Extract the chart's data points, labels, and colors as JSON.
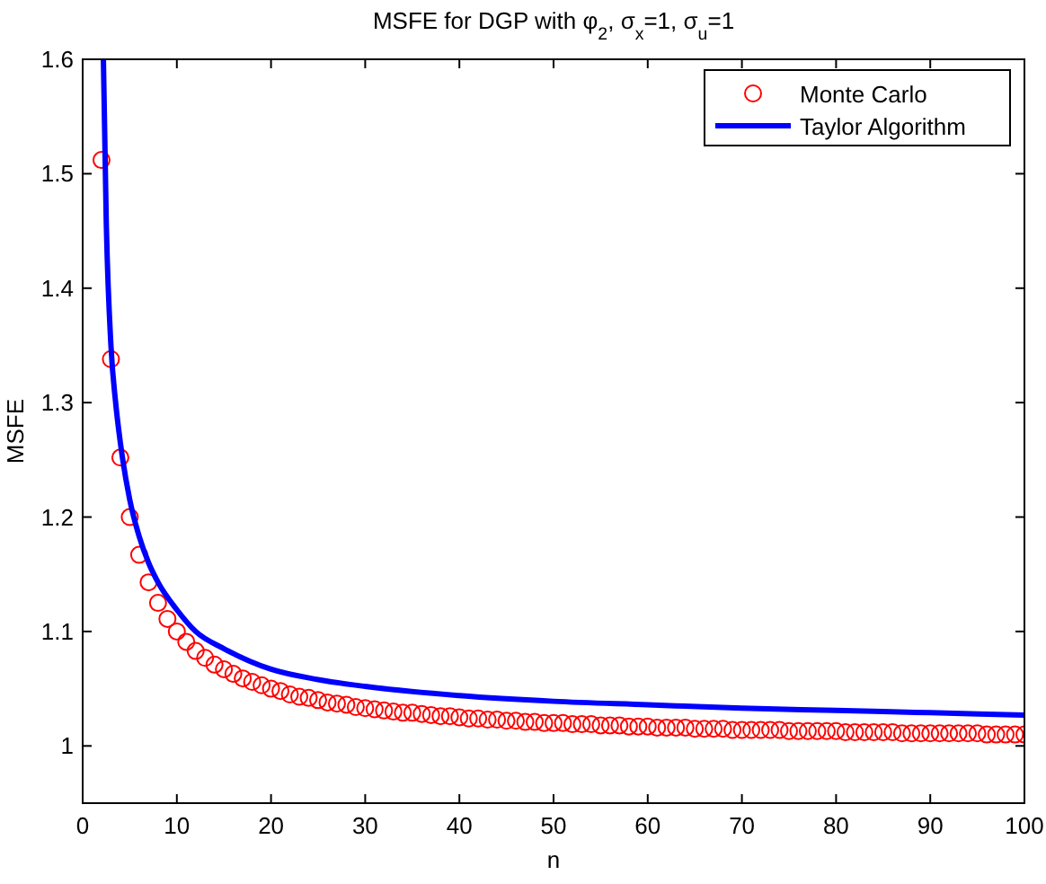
{
  "chart_data": {
    "type": "scatter",
    "title": "MSFE for DGP with φ$_{2}$, σ$_{x}$=1, σ$_{u}$=1",
    "xlabel": "n",
    "ylabel": "MSFE",
    "xlim": [
      0,
      100
    ],
    "xticks": [
      0,
      10,
      20,
      30,
      40,
      50,
      60,
      70,
      80,
      90,
      100
    ],
    "ylim": [
      0.95,
      1.6
    ],
    "yticks": [
      1,
      1.1,
      1.2,
      1.3,
      1.4,
      1.5,
      1.6
    ],
    "grid": false,
    "legend": "top right",
    "series": [
      {
        "name": "Monte Carlo",
        "marker": "circle",
        "color": "#ff0000",
        "x": [
          2,
          3,
          4,
          5,
          6,
          7,
          8,
          9,
          10,
          11,
          12,
          13,
          14,
          15,
          16,
          17,
          18,
          19,
          20,
          21,
          22,
          23,
          24,
          25,
          26,
          27,
          28,
          29,
          30,
          31,
          32,
          33,
          34,
          35,
          36,
          37,
          38,
          39,
          40,
          41,
          42,
          43,
          44,
          45,
          46,
          47,
          48,
          49,
          50,
          51,
          52,
          53,
          54,
          55,
          56,
          57,
          58,
          59,
          60,
          61,
          62,
          63,
          64,
          65,
          66,
          67,
          68,
          69,
          70,
          71,
          72,
          73,
          74,
          75,
          76,
          77,
          78,
          79,
          80,
          81,
          82,
          83,
          84,
          85,
          86,
          87,
          88,
          89,
          90,
          91,
          92,
          93,
          94,
          95,
          96,
          97,
          98,
          99,
          100
        ],
        "values": [
          1.512,
          1.338,
          1.252,
          1.2,
          1.167,
          1.143,
          1.125,
          1.111,
          1.1,
          1.091,
          1.083,
          1.077,
          1.071,
          1.067,
          1.063,
          1.059,
          1.056,
          1.053,
          1.05,
          1.048,
          1.045,
          1.043,
          1.042,
          1.04,
          1.038,
          1.037,
          1.036,
          1.034,
          1.033,
          1.032,
          1.031,
          1.03,
          1.029,
          1.029,
          1.028,
          1.027,
          1.026,
          1.026,
          1.025,
          1.024,
          1.024,
          1.023,
          1.023,
          1.022,
          1.022,
          1.021,
          1.021,
          1.02,
          1.02,
          1.02,
          1.019,
          1.019,
          1.019,
          1.018,
          1.018,
          1.018,
          1.017,
          1.017,
          1.017,
          1.016,
          1.016,
          1.016,
          1.016,
          1.015,
          1.015,
          1.015,
          1.015,
          1.014,
          1.014,
          1.014,
          1.014,
          1.014,
          1.014,
          1.013,
          1.013,
          1.013,
          1.013,
          1.013,
          1.013,
          1.012,
          1.012,
          1.012,
          1.012,
          1.012,
          1.012,
          1.011,
          1.011,
          1.011,
          1.011,
          1.011,
          1.011,
          1.011,
          1.011,
          1.011,
          1.01,
          1.01,
          1.01,
          1.01,
          1.01
        ]
      },
      {
        "name": "Taylor Algorithm",
        "type": "line",
        "line_style": "solid",
        "color": "#0000ff",
        "x": [
          2.2,
          2.5,
          3,
          3.5,
          4,
          5,
          6,
          7,
          8,
          10,
          12,
          15,
          20,
          25,
          30,
          40,
          50,
          60,
          70,
          80,
          90,
          100
        ],
        "values": [
          1.6,
          1.46,
          1.35,
          1.3,
          1.265,
          1.215,
          1.183,
          1.16,
          1.143,
          1.119,
          1.1,
          1.085,
          1.067,
          1.058,
          1.052,
          1.044,
          1.039,
          1.036,
          1.033,
          1.031,
          1.029,
          1.027
        ]
      }
    ]
  }
}
